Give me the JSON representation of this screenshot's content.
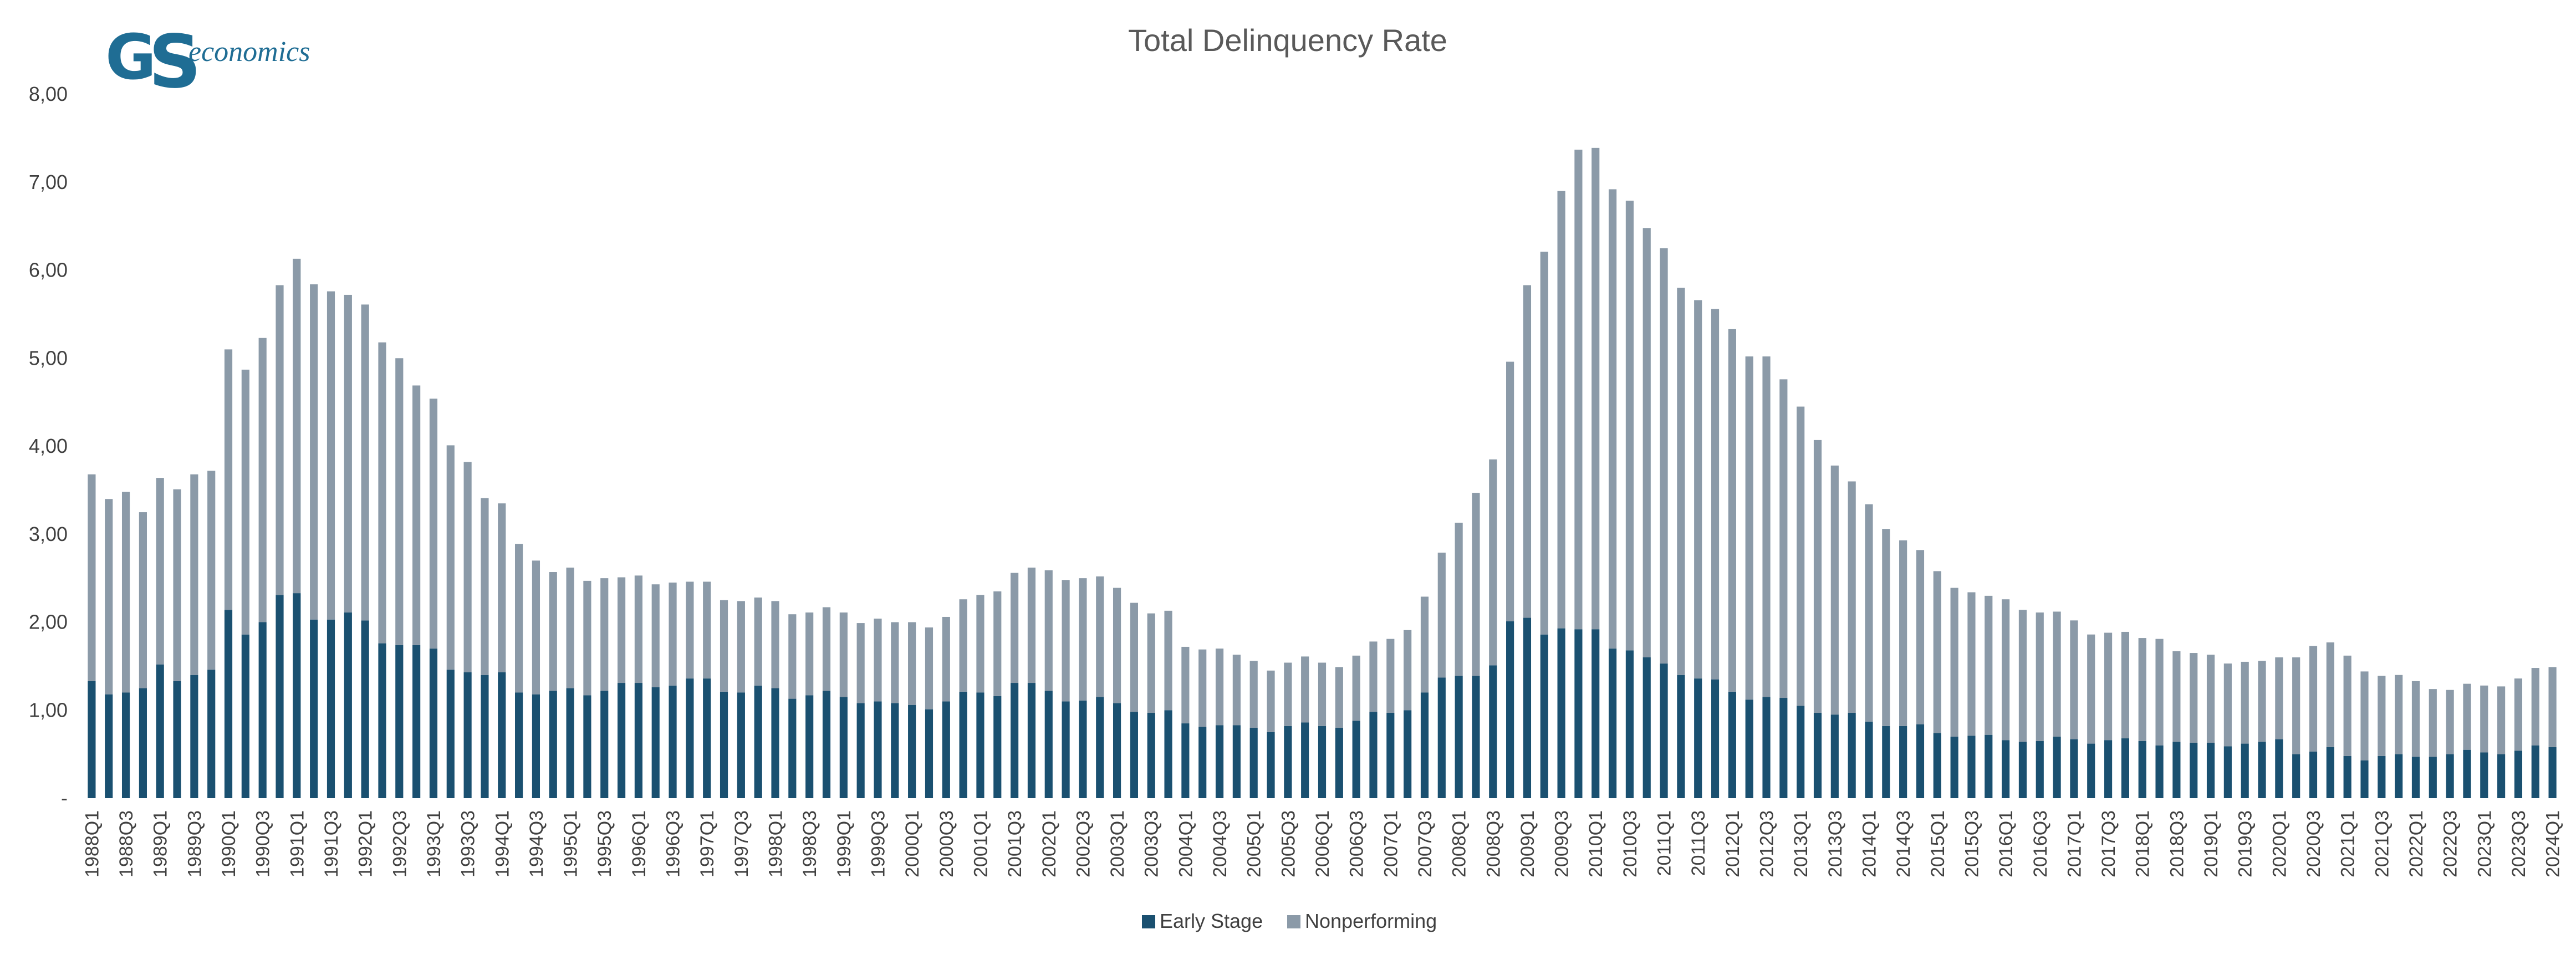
{
  "logo": {
    "mark_g": "G",
    "mark_s": "S",
    "text": "economics"
  },
  "colors": {
    "early_stage": "#1a5070",
    "nonperforming": "#8b9aa8",
    "axis_text": "#404040",
    "title_text": "#595959"
  },
  "chart_data": {
    "type": "bar",
    "stacked": true,
    "title": "Total Delinquency Rate",
    "xlabel": "",
    "ylabel": "",
    "ylim": [
      0,
      8
    ],
    "y_ticks": [
      "-",
      "1,00",
      "2,00",
      "3,00",
      "4,00",
      "5,00",
      "6,00",
      "7,00",
      "8,00"
    ],
    "grid": false,
    "legend_position": "bottom",
    "start_quarter": "1988Q1",
    "end_quarter": "2024Q1",
    "tick_labels": [
      "1988Q1",
      "1988Q3",
      "1989Q1",
      "1989Q3",
      "1990Q1",
      "1990Q3",
      "1991Q1",
      "1991Q3",
      "1992Q1",
      "1992Q3",
      "1993Q1",
      "1993Q3",
      "1994Q1",
      "1994Q3",
      "1995Q1",
      "1995Q3",
      "1996Q1",
      "1996Q3",
      "1997Q1",
      "1997Q3",
      "1998Q1",
      "1998Q3",
      "1999Q1",
      "1999Q3",
      "2000Q1",
      "2000Q3",
      "2001Q1",
      "2001Q3",
      "2002Q1",
      "2002Q3",
      "2003Q1",
      "2003Q3",
      "2004Q1",
      "2004Q3",
      "2005Q1",
      "2005Q3",
      "2006Q1",
      "2006Q3",
      "2007Q1",
      "2007Q3",
      "2008Q1",
      "2008Q3",
      "2009Q1",
      "2009Q3",
      "2010Q1",
      "2010Q3",
      "2011Q1",
      "2011Q3",
      "2012Q1",
      "2012Q3",
      "2013Q1",
      "2013Q3",
      "2014Q1",
      "2014Q3",
      "2015Q1",
      "2015Q3",
      "2016Q1",
      "2016Q3",
      "2017Q1",
      "2017Q3",
      "2018Q1",
      "2018Q3",
      "2019Q1",
      "2019Q3",
      "2020Q1",
      "2020Q3",
      "2021Q1",
      "2021Q3",
      "2022Q1",
      "2022Q3",
      "2023Q1",
      "2023Q3",
      "2024Q1"
    ],
    "series": [
      {
        "name": "Early Stage",
        "values": [
          1.33,
          1.18,
          1.2,
          1.25,
          1.52,
          1.33,
          1.4,
          1.46,
          2.14,
          1.86,
          2.0,
          2.31,
          2.33,
          2.03,
          2.03,
          2.11,
          2.02,
          1.76,
          1.74,
          1.74,
          1.7,
          1.46,
          1.43,
          1.4,
          1.43,
          1.2,
          1.18,
          1.22,
          1.25,
          1.17,
          1.22,
          1.31,
          1.31,
          1.26,
          1.28,
          1.36,
          1.36,
          1.21,
          1.2,
          1.28,
          1.25,
          1.13,
          1.17,
          1.22,
          1.15,
          1.08,
          1.1,
          1.08,
          1.06,
          1.01,
          1.1,
          1.21,
          1.2,
          1.16,
          1.31,
          1.31,
          1.22,
          1.1,
          1.11,
          1.15,
          1.08,
          0.98,
          0.97,
          1.0,
          0.85,
          0.81,
          0.83,
          0.83,
          0.8,
          0.75,
          0.82,
          0.86,
          0.82,
          0.8,
          0.88,
          0.98,
          0.97,
          1.0,
          1.2,
          1.37,
          1.39,
          1.39,
          1.51,
          2.01,
          2.05,
          1.86,
          1.93,
          1.92,
          1.92,
          1.7,
          1.68,
          1.6,
          1.53,
          1.4,
          1.36,
          1.35,
          1.21,
          1.12,
          1.15,
          1.14,
          1.05,
          0.97,
          0.95,
          0.97,
          0.87,
          0.82,
          0.82,
          0.84,
          0.74,
          0.7,
          0.71,
          0.72,
          0.66,
          0.64,
          0.65,
          0.7,
          0.67,
          0.62,
          0.66,
          0.68,
          0.65,
          0.6,
          0.64,
          0.63,
          0.63,
          0.59,
          0.62,
          0.64,
          0.67,
          0.5,
          0.53,
          0.58,
          0.48,
          0.43,
          0.48,
          0.5,
          0.47,
          0.47,
          0.5,
          0.55,
          0.52,
          0.5,
          0.54,
          0.6,
          0.58
        ]
      },
      {
        "name": "Nonperforming",
        "values": [
          2.35,
          2.22,
          2.28,
          2.0,
          2.12,
          2.18,
          2.28,
          2.26,
          2.96,
          3.01,
          3.23,
          3.52,
          3.8,
          3.81,
          3.73,
          3.61,
          3.59,
          3.42,
          3.26,
          2.95,
          2.84,
          2.55,
          2.39,
          2.01,
          1.92,
          1.69,
          1.52,
          1.35,
          1.37,
          1.3,
          1.28,
          1.2,
          1.22,
          1.17,
          1.17,
          1.1,
          1.1,
          1.04,
          1.04,
          1.0,
          0.99,
          0.96,
          0.94,
          0.95,
          0.96,
          0.91,
          0.94,
          0.92,
          0.94,
          0.93,
          0.96,
          1.05,
          1.11,
          1.19,
          1.25,
          1.31,
          1.37,
          1.38,
          1.39,
          1.37,
          1.31,
          1.24,
          1.13,
          1.13,
          0.87,
          0.88,
          0.87,
          0.8,
          0.76,
          0.7,
          0.72,
          0.75,
          0.72,
          0.69,
          0.74,
          0.8,
          0.84,
          0.91,
          1.09,
          1.42,
          1.74,
          2.08,
          2.34,
          2.95,
          3.78,
          4.35,
          4.97,
          5.45,
          5.47,
          5.22,
          5.11,
          4.88,
          4.72,
          4.4,
          4.3,
          4.21,
          4.12,
          3.9,
          3.87,
          3.62,
          3.4,
          3.1,
          2.83,
          2.63,
          2.47,
          2.24,
          2.11,
          1.98,
          1.84,
          1.69,
          1.63,
          1.58,
          1.6,
          1.5,
          1.46,
          1.42,
          1.35,
          1.24,
          1.22,
          1.21,
          1.17,
          1.21,
          1.03,
          1.02,
          1.0,
          0.94,
          0.93,
          0.92,
          0.93,
          1.1,
          1.2,
          1.19,
          1.14,
          1.01,
          0.91,
          0.9,
          0.86,
          0.77,
          0.73,
          0.75,
          0.76,
          0.77,
          0.82,
          0.88,
          0.91
        ]
      }
    ]
  }
}
